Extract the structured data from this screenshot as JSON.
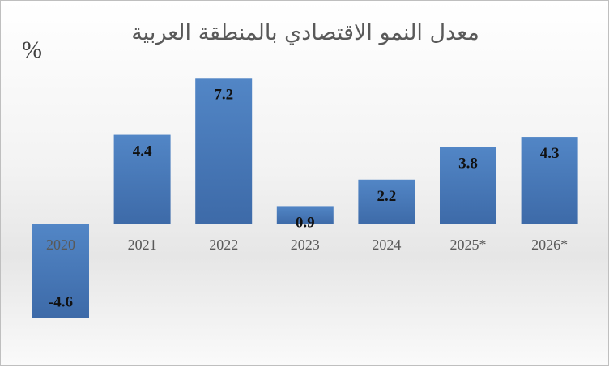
{
  "chart_data": {
    "type": "bar",
    "title": "معدل النمو الاقتصادي بالمنطقة العربية",
    "ylabel": "%",
    "xlabel": "",
    "categories": [
      "2020",
      "2021",
      "2022",
      "2023",
      "2024",
      "2025*",
      "2026*"
    ],
    "values": [
      -4.6,
      4.4,
      7.2,
      0.9,
      2.2,
      3.8,
      4.3
    ],
    "data_labels": [
      "-4.6",
      "4.4",
      "7.2",
      "0.9",
      "2.2",
      "3.8",
      "4.3"
    ],
    "grid": false,
    "legend": "none",
    "bar_color": "#4a7bbd"
  }
}
